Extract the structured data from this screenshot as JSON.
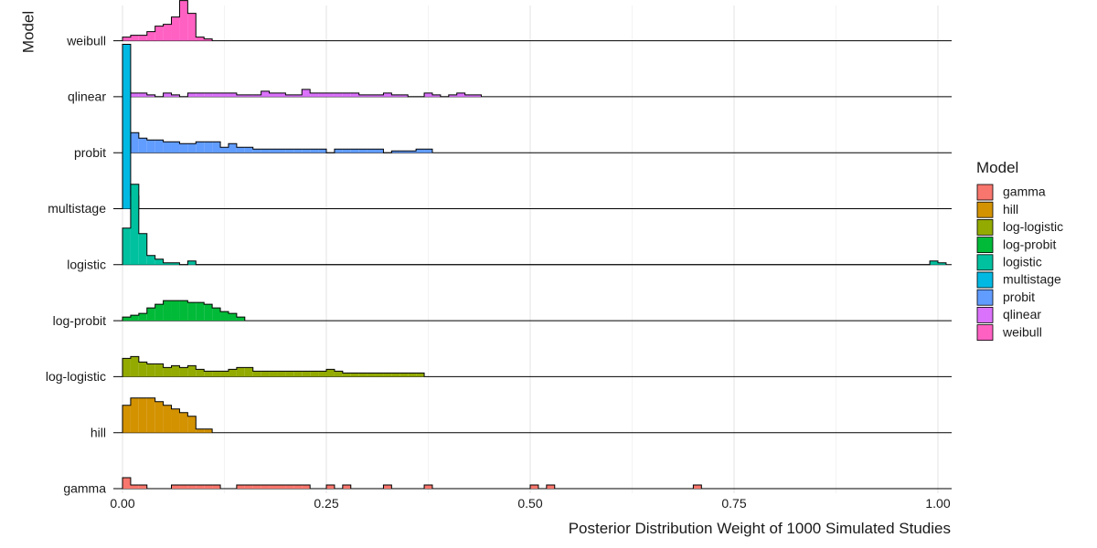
{
  "chart_data": {
    "type": "ridgeline-histogram",
    "title": "",
    "xlabel": "Posterior Distribution Weight of 1000 Simulated Studies",
    "ylabel": "Model",
    "xlim": [
      0,
      1
    ],
    "x_ticks": [
      0,
      0.25,
      0.5,
      0.75,
      1
    ],
    "x_tick_labels": [
      "0.00",
      "0.25",
      "0.50",
      "0.75",
      "1.00"
    ],
    "bin_width": 0.01,
    "grid": "vertical",
    "legend": {
      "title": "Model",
      "placement": "right",
      "entries": [
        "gamma",
        "hill",
        "log-logistic",
        "log-probit",
        "logistic",
        "multistage",
        "probit",
        "qlinear",
        "weibull"
      ]
    },
    "series": [
      {
        "name": "gamma",
        "color": "#F8766D",
        "counts": [
          [
            0.0,
            12
          ],
          [
            0.01,
            4
          ],
          [
            0.02,
            4
          ],
          [
            0.06,
            4
          ],
          [
            0.07,
            4
          ],
          [
            0.08,
            4
          ],
          [
            0.09,
            4
          ],
          [
            0.1,
            4
          ],
          [
            0.11,
            4
          ],
          [
            0.14,
            4
          ],
          [
            0.15,
            4
          ],
          [
            0.16,
            4
          ],
          [
            0.17,
            4
          ],
          [
            0.18,
            4
          ],
          [
            0.19,
            4
          ],
          [
            0.2,
            4
          ],
          [
            0.21,
            4
          ],
          [
            0.22,
            4
          ],
          [
            0.25,
            4
          ],
          [
            0.27,
            4
          ],
          [
            0.32,
            4
          ],
          [
            0.37,
            4
          ],
          [
            0.5,
            4
          ],
          [
            0.52,
            4
          ],
          [
            0.7,
            4
          ]
        ]
      },
      {
        "name": "hill",
        "color": "#D39200",
        "counts": [
          [
            0.0,
            30
          ],
          [
            0.01,
            38
          ],
          [
            0.02,
            38
          ],
          [
            0.03,
            38
          ],
          [
            0.04,
            34
          ],
          [
            0.05,
            30
          ],
          [
            0.06,
            26
          ],
          [
            0.07,
            22
          ],
          [
            0.08,
            18
          ],
          [
            0.09,
            4
          ],
          [
            0.1,
            4
          ]
        ]
      },
      {
        "name": "log-logistic",
        "color": "#93AA00",
        "counts": [
          [
            0.0,
            20
          ],
          [
            0.01,
            22
          ],
          [
            0.02,
            16
          ],
          [
            0.03,
            14
          ],
          [
            0.04,
            14
          ],
          [
            0.05,
            10
          ],
          [
            0.06,
            12
          ],
          [
            0.07,
            10
          ],
          [
            0.08,
            12
          ],
          [
            0.09,
            8
          ],
          [
            0.1,
            6
          ],
          [
            0.11,
            6
          ],
          [
            0.12,
            6
          ],
          [
            0.13,
            8
          ],
          [
            0.14,
            10
          ],
          [
            0.15,
            10
          ],
          [
            0.16,
            6
          ],
          [
            0.17,
            6
          ],
          [
            0.18,
            6
          ],
          [
            0.19,
            6
          ],
          [
            0.2,
            6
          ],
          [
            0.21,
            6
          ],
          [
            0.22,
            6
          ],
          [
            0.23,
            6
          ],
          [
            0.24,
            6
          ],
          [
            0.25,
            8
          ],
          [
            0.26,
            6
          ],
          [
            0.27,
            4
          ],
          [
            0.28,
            4
          ],
          [
            0.29,
            4
          ],
          [
            0.3,
            4
          ],
          [
            0.31,
            4
          ],
          [
            0.32,
            4
          ],
          [
            0.33,
            4
          ],
          [
            0.34,
            4
          ],
          [
            0.35,
            4
          ],
          [
            0.36,
            4
          ]
        ]
      },
      {
        "name": "log-probit",
        "color": "#00BA38",
        "counts": [
          [
            0.0,
            4
          ],
          [
            0.01,
            6
          ],
          [
            0.02,
            8
          ],
          [
            0.03,
            14
          ],
          [
            0.04,
            18
          ],
          [
            0.05,
            22
          ],
          [
            0.06,
            22
          ],
          [
            0.07,
            22
          ],
          [
            0.08,
            20
          ],
          [
            0.09,
            20
          ],
          [
            0.1,
            18
          ],
          [
            0.11,
            14
          ],
          [
            0.12,
            10
          ],
          [
            0.13,
            8
          ],
          [
            0.14,
            4
          ]
        ]
      },
      {
        "name": "logistic",
        "color": "#00C19F",
        "counts": [
          [
            0.0,
            40
          ],
          [
            0.01,
            88
          ],
          [
            0.02,
            34
          ],
          [
            0.03,
            10
          ],
          [
            0.04,
            6
          ],
          [
            0.05,
            2
          ],
          [
            0.06,
            2
          ],
          [
            0.08,
            4
          ],
          [
            0.99,
            4
          ],
          [
            1.0,
            2
          ]
        ]
      },
      {
        "name": "multistage",
        "color": "#00B9E3",
        "counts": [
          [
            0.0,
            180
          ],
          [
            0.01,
            14
          ]
        ]
      },
      {
        "name": "probit",
        "color": "#619CFF",
        "counts": [
          [
            0.01,
            22
          ],
          [
            0.02,
            16
          ],
          [
            0.03,
            14
          ],
          [
            0.04,
            14
          ],
          [
            0.05,
            12
          ],
          [
            0.06,
            12
          ],
          [
            0.07,
            10
          ],
          [
            0.08,
            10
          ],
          [
            0.09,
            12
          ],
          [
            0.1,
            12
          ],
          [
            0.11,
            12
          ],
          [
            0.12,
            6
          ],
          [
            0.13,
            10
          ],
          [
            0.14,
            6
          ],
          [
            0.15,
            6
          ],
          [
            0.16,
            4
          ],
          [
            0.17,
            4
          ],
          [
            0.18,
            4
          ],
          [
            0.19,
            4
          ],
          [
            0.2,
            4
          ],
          [
            0.21,
            4
          ],
          [
            0.22,
            4
          ],
          [
            0.23,
            4
          ],
          [
            0.24,
            4
          ],
          [
            0.26,
            4
          ],
          [
            0.27,
            4
          ],
          [
            0.28,
            4
          ],
          [
            0.29,
            4
          ],
          [
            0.3,
            4
          ],
          [
            0.31,
            4
          ],
          [
            0.33,
            2
          ],
          [
            0.34,
            2
          ],
          [
            0.35,
            2
          ],
          [
            0.36,
            4
          ],
          [
            0.37,
            4
          ]
        ]
      },
      {
        "name": "qlinear",
        "color": "#DB72FB",
        "counts": [
          [
            0.0,
            6
          ],
          [
            0.01,
            4
          ],
          [
            0.02,
            4
          ],
          [
            0.03,
            2
          ],
          [
            0.05,
            4
          ],
          [
            0.06,
            2
          ],
          [
            0.08,
            4
          ],
          [
            0.09,
            4
          ],
          [
            0.1,
            4
          ],
          [
            0.11,
            4
          ],
          [
            0.12,
            4
          ],
          [
            0.13,
            4
          ],
          [
            0.14,
            2
          ],
          [
            0.15,
            2
          ],
          [
            0.16,
            2
          ],
          [
            0.17,
            6
          ],
          [
            0.18,
            4
          ],
          [
            0.19,
            4
          ],
          [
            0.2,
            2
          ],
          [
            0.21,
            2
          ],
          [
            0.22,
            8
          ],
          [
            0.23,
            4
          ],
          [
            0.24,
            4
          ],
          [
            0.25,
            4
          ],
          [
            0.26,
            4
          ],
          [
            0.27,
            4
          ],
          [
            0.28,
            4
          ],
          [
            0.29,
            2
          ],
          [
            0.3,
            2
          ],
          [
            0.31,
            2
          ],
          [
            0.32,
            4
          ],
          [
            0.33,
            2
          ],
          [
            0.34,
            2
          ],
          [
            0.37,
            4
          ],
          [
            0.38,
            2
          ],
          [
            0.4,
            2
          ],
          [
            0.41,
            4
          ],
          [
            0.42,
            2
          ],
          [
            0.43,
            2
          ]
        ]
      },
      {
        "name": "weibull",
        "color": "#FF61C3",
        "counts": [
          [
            0.0,
            4
          ],
          [
            0.01,
            6
          ],
          [
            0.02,
            6
          ],
          [
            0.03,
            10
          ],
          [
            0.04,
            16
          ],
          [
            0.05,
            18
          ],
          [
            0.06,
            26
          ],
          [
            0.07,
            44
          ],
          [
            0.08,
            30
          ],
          [
            0.09,
            4
          ],
          [
            0.1,
            2
          ]
        ]
      }
    ]
  }
}
